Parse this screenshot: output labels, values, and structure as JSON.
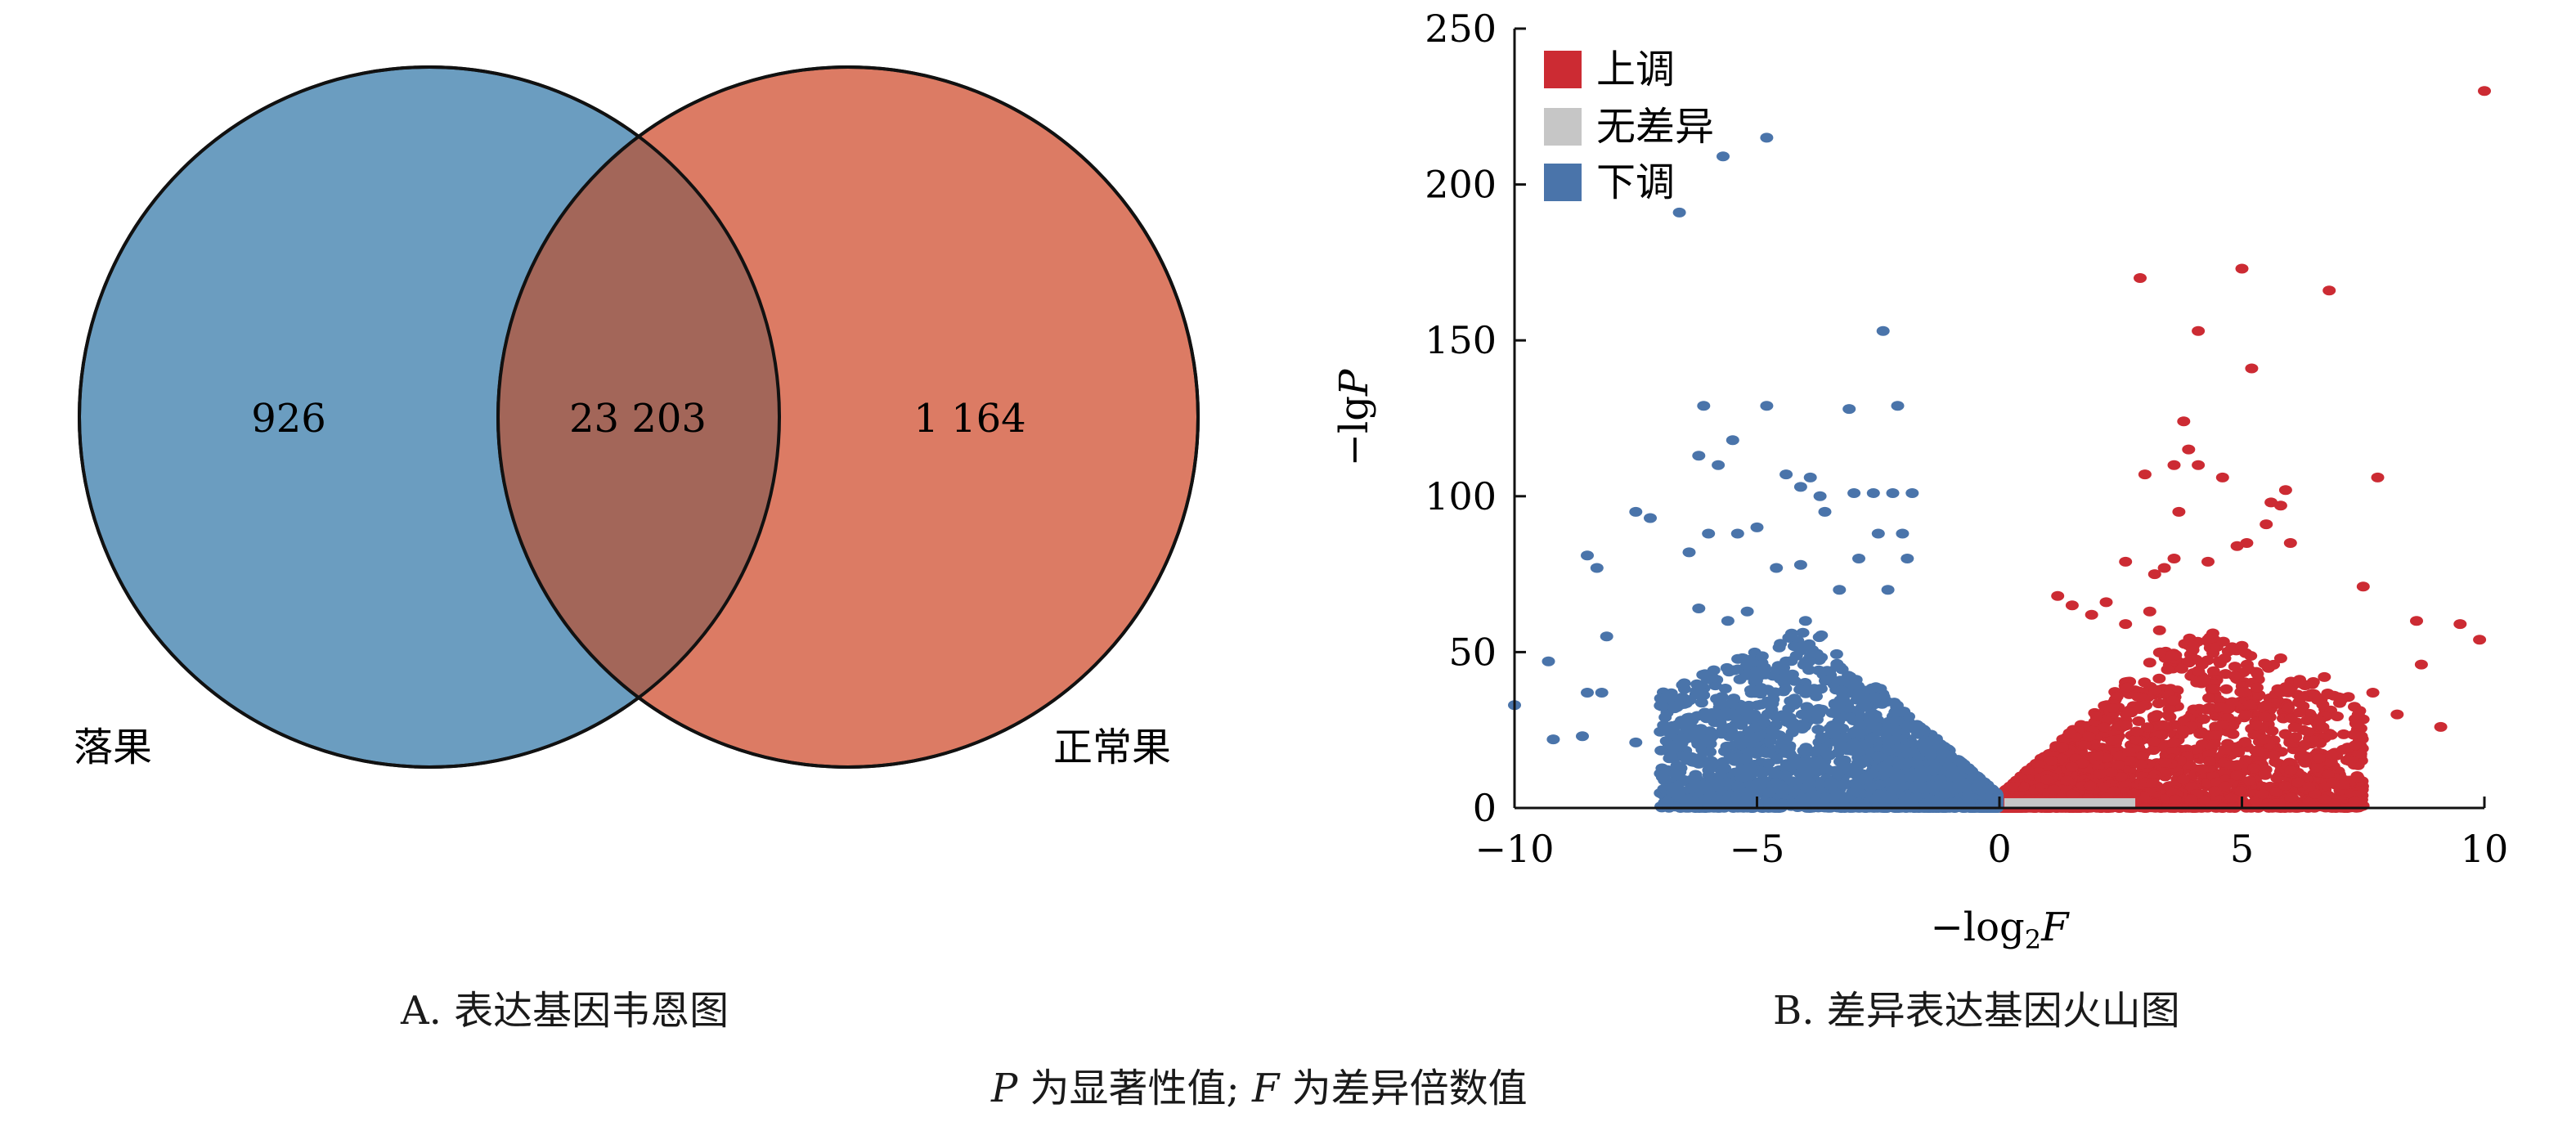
{
  "chart_data": [
    {
      "type": "venn",
      "sets": [
        {
          "name": "落果",
          "color": "#6b9dc0"
        },
        {
          "name": "正常果",
          "color": "#dc7b64"
        }
      ],
      "counts": {
        "only_first": "926",
        "intersection": "23 203",
        "only_second": "1 164"
      },
      "intersection_color": "#a36659",
      "caption": "A. 表达基因韦恩图"
    },
    {
      "type": "scatter",
      "xlabel_prefix": "−log",
      "xlabel_sub": "2",
      "xlabel_var": "F",
      "ylabel_prefix": "−lg",
      "ylabel_var": "P",
      "xlim": [
        -10,
        10
      ],
      "ylim": [
        0,
        250
      ],
      "xticks": [
        -10,
        -5,
        0,
        5,
        10
      ],
      "yticks": [
        0,
        50,
        100,
        150,
        200,
        250
      ],
      "xtick_labels": [
        "−10",
        "−5",
        "0",
        "5",
        "10"
      ],
      "ytick_labels": [
        "0",
        "50",
        "100",
        "150",
        "200",
        "250"
      ],
      "grid": false,
      "legend_position": "top-left",
      "series": [
        {
          "name": "上调",
          "color": "#cc2b33",
          "points": [
            [
              10.0,
              230
            ],
            [
              5.0,
              173
            ],
            [
              2.9,
              170
            ],
            [
              6.8,
              166
            ],
            [
              4.1,
              153
            ],
            [
              5.2,
              141
            ],
            [
              3.8,
              124
            ],
            [
              3.9,
              115
            ],
            [
              4.1,
              110
            ],
            [
              3.6,
              110
            ],
            [
              3.0,
              107
            ],
            [
              4.6,
              106
            ],
            [
              7.8,
              106
            ],
            [
              5.9,
              102
            ],
            [
              5.6,
              98
            ],
            [
              5.8,
              97
            ],
            [
              3.7,
              95
            ],
            [
              5.5,
              91
            ],
            [
              6.0,
              85
            ],
            [
              5.1,
              85
            ],
            [
              4.9,
              84
            ],
            [
              3.6,
              80
            ],
            [
              2.6,
              79
            ],
            [
              4.3,
              79
            ],
            [
              3.4,
              77
            ],
            [
              3.2,
              75
            ],
            [
              7.5,
              71
            ],
            [
              3.1,
              63
            ],
            [
              8.6,
              60
            ],
            [
              9.5,
              59
            ],
            [
              9.9,
              54
            ],
            [
              8.7,
              46
            ],
            [
              4.1,
              44
            ],
            [
              6.7,
              42
            ],
            [
              7.7,
              37
            ],
            [
              8.2,
              30
            ],
            [
              7.4,
              30
            ],
            [
              9.1,
              26
            ],
            [
              1.9,
              62
            ],
            [
              2.2,
              66
            ],
            [
              2.6,
              59
            ],
            [
              3.3,
              57
            ],
            [
              1.2,
              68
            ],
            [
              1.5,
              65
            ],
            [
              4.4,
              56
            ],
            [
              5.0,
              52
            ],
            [
              5.8,
              48
            ],
            [
              6.2,
              40
            ],
            [
              4.8,
              34
            ],
            [
              5.5,
              33
            ],
            [
              6.6,
              28
            ]
          ],
          "cluster": {
            "x_min": 0.05,
            "x_max": 7.5,
            "count": 2400
          }
        },
        {
          "name": "无差异",
          "color": "#c6c6c6",
          "segment": [
            [
              0.1,
              0.5
            ],
            [
              2.8,
              0.5
            ]
          ]
        },
        {
          "name": "下调",
          "color": "#4a74aa",
          "points": [
            [
              -4.8,
              215
            ],
            [
              -5.7,
              209
            ],
            [
              -6.6,
              191
            ],
            [
              -2.4,
              153
            ],
            [
              -6.1,
              129
            ],
            [
              -4.8,
              129
            ],
            [
              -2.1,
              129
            ],
            [
              -3.1,
              128
            ],
            [
              -5.5,
              118
            ],
            [
              -6.2,
              113
            ],
            [
              -5.8,
              110
            ],
            [
              -4.4,
              107
            ],
            [
              -3.9,
              106
            ],
            [
              -4.1,
              103
            ],
            [
              -3.7,
              100
            ],
            [
              -2.2,
              101
            ],
            [
              -2.6,
              101
            ],
            [
              -3.0,
              101
            ],
            [
              -1.8,
              101
            ],
            [
              -7.5,
              95
            ],
            [
              -7.2,
              93
            ],
            [
              -6.4,
              82
            ],
            [
              -8.5,
              81
            ],
            [
              -8.3,
              77
            ],
            [
              -6.0,
              88
            ],
            [
              -5.4,
              88
            ],
            [
              -5.0,
              90
            ],
            [
              -8.1,
              55
            ],
            [
              -9.3,
              47
            ],
            [
              -8.5,
              37
            ],
            [
              -10.0,
              33
            ],
            [
              -8.2,
              37
            ],
            [
              -9.2,
              22
            ],
            [
              -8.6,
              23
            ],
            [
              -7.5,
              21
            ],
            [
              -6.5,
              40
            ],
            [
              -6.2,
              64
            ],
            [
              -5.6,
              60
            ],
            [
              -6.6,
              33
            ],
            [
              -3.6,
              95
            ],
            [
              -2.5,
              88
            ],
            [
              -2.0,
              88
            ],
            [
              -2.9,
              80
            ],
            [
              -4.1,
              78
            ],
            [
              -4.6,
              77
            ],
            [
              -3.3,
              70
            ],
            [
              -5.2,
              63
            ],
            [
              -4.0,
              60
            ],
            [
              -1.9,
              80
            ],
            [
              -2.3,
              70
            ]
          ],
          "cluster": {
            "x_min": -7.0,
            "x_max": -0.05,
            "count": 2600
          }
        }
      ],
      "caption": "B. 差异表达基因火山图"
    }
  ],
  "footnote": {
    "p_var": "P",
    "p_text": " 为显著性值; ",
    "f_var": "F",
    "f_text": " 为差异倍数值"
  }
}
